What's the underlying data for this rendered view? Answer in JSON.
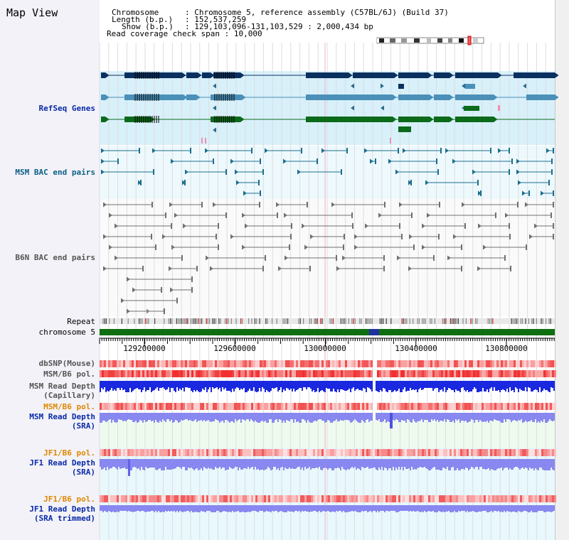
{
  "app": {
    "title": "Map View"
  },
  "info": {
    "chromosome_key": "Chromosome",
    "chromosome_val": "Chromosome 5, reference assembly (C57BL/6J) (Build 37)",
    "length_key": "Length (b.p.)",
    "length_val": "152,537,259",
    "show_key": "Show (b.p.)",
    "show_val": "129,103,096-131,103,529 : 2,000,434 bp",
    "coverage_key": "Read coverage check span",
    "coverage_val": "10,000"
  },
  "tracks": {
    "refseq": "RefSeq Genes",
    "msm_bac": "MSM BAC end pairs",
    "b6n_bac": "B6N BAC end pairs",
    "repeat": "Repeat",
    "chromosome": "chromosome 5",
    "dbsnp": "dbSNP(Mouse)",
    "msm_b6_pol_1": "MSM/B6 pol.",
    "msm_read_depth_cap_1": "MSM Read Depth",
    "msm_read_depth_cap_2": "(Capillary)",
    "msm_b6_pol_2": "MSM/B6 pol.",
    "msm_read_depth_sra_1": "MSM Read Depth",
    "msm_read_depth_sra_2": "(SRA)",
    "jf1_b6_pol_1": "JF1/B6 pol.",
    "jf1_read_depth_1": "JF1 Read Depth",
    "jf1_read_depth_2": "(SRA)",
    "jf1_b6_pol_2": "JF1/B6 pol.",
    "jf1_trim_1": "JF1 Read Depth",
    "jf1_trim_2": "(SRA trimmed)"
  },
  "axis": {
    "tick_values": [
      129200000,
      129600000,
      130000000,
      130400000,
      130800000
    ],
    "tick_labels": [
      "129200000",
      "129600000",
      "130000000",
      "130400000",
      "130800000"
    ]
  },
  "colors": {
    "refseq_dark": "#0a3060",
    "refseq_mid": "#4a90b8",
    "refseq_green": "#0b6b1a",
    "msm_pair": "#1b6e8f",
    "b6n_pair": "#707070",
    "chromosome_bar": "#0f6e0f",
    "pol_red": "#f04848",
    "depth_blue": "#1a28e0",
    "depth_light": "#8888f0"
  }
}
